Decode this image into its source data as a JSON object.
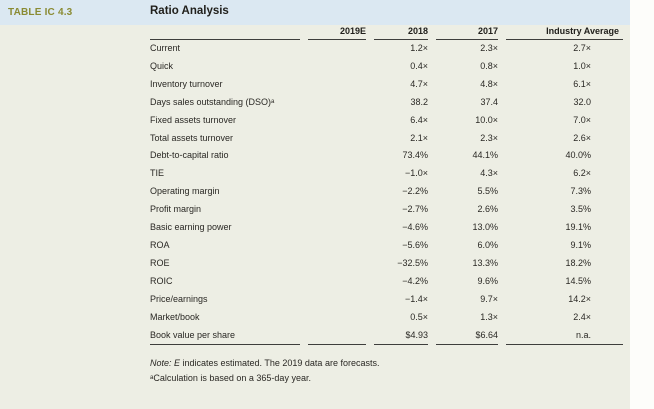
{
  "page": {
    "table_label": "TABLE IC 4.3",
    "title": "Ratio Analysis"
  },
  "colors": {
    "band_blue": "#dbe8f2",
    "panel_cream": "#edeee4",
    "label_olive": "#8a8b33",
    "rule_dark": "#3e3e3c",
    "text": "#2a2824"
  },
  "table": {
    "columns": [
      "",
      "2019E",
      "2018",
      "2017",
      "Industry Average"
    ],
    "rows": [
      {
        "label": "Current",
        "y2019e": "",
        "y2018": "1.2×",
        "y2017": "2.3×",
        "industry": "2.7×"
      },
      {
        "label": "Quick",
        "y2019e": "",
        "y2018": "0.4×",
        "y2017": "0.8×",
        "industry": "1.0×"
      },
      {
        "label": "Inventory turnover",
        "y2019e": "",
        "y2018": "4.7×",
        "y2017": "4.8×",
        "industry": "6.1×"
      },
      {
        "label": "Days sales outstanding (DSO)ᵃ",
        "y2019e": "",
        "y2018": "38.2",
        "y2017": "37.4",
        "industry": "32.0"
      },
      {
        "label": "Fixed assets turnover",
        "y2019e": "",
        "y2018": "6.4×",
        "y2017": "10.0×",
        "industry": "7.0×"
      },
      {
        "label": "Total assets turnover",
        "y2019e": "",
        "y2018": "2.1×",
        "y2017": "2.3×",
        "industry": "2.6×"
      },
      {
        "label": "Debt-to-capital ratio",
        "y2019e": "",
        "y2018": "73.4%",
        "y2017": "44.1%",
        "industry": "40.0%"
      },
      {
        "label": "TIE",
        "y2019e": "",
        "y2018": "−1.0×",
        "y2017": "4.3×",
        "industry": "6.2×"
      },
      {
        "label": "Operating margin",
        "y2019e": "",
        "y2018": "−2.2%",
        "y2017": "5.5%",
        "industry": "7.3%"
      },
      {
        "label": "Profit margin",
        "y2019e": "",
        "y2018": "−2.7%",
        "y2017": "2.6%",
        "industry": "3.5%"
      },
      {
        "label": "Basic earning power",
        "y2019e": "",
        "y2018": "−4.6%",
        "y2017": "13.0%",
        "industry": "19.1%"
      },
      {
        "label": "ROA",
        "y2019e": "",
        "y2018": "−5.6%",
        "y2017": "6.0%",
        "industry": "9.1%"
      },
      {
        "label": "ROE",
        "y2019e": "",
        "y2018": "−32.5%",
        "y2017": "13.3%",
        "industry": "18.2%"
      },
      {
        "label": "ROIC",
        "y2019e": "",
        "y2018": "−4.2%",
        "y2017": "9.6%",
        "industry": "14.5%"
      },
      {
        "label": "Price/earnings",
        "y2019e": "",
        "y2018": "−1.4×",
        "y2017": "9.7×",
        "industry": "14.2×"
      },
      {
        "label": "Market/book",
        "y2019e": "",
        "y2018": "0.5×",
        "y2017": "1.3×",
        "industry": "2.4×"
      },
      {
        "label": "Book value per share",
        "y2019e": "",
        "y2018": "$4.93",
        "y2017": "$6.64",
        "industry": "n.a."
      }
    ]
  },
  "notes": {
    "line1_italic": "Note: E",
    "line1_rest": " indicates estimated. The 2019 data are forecasts.",
    "line2": "ᵃCalculation is based on a 365-day year."
  }
}
